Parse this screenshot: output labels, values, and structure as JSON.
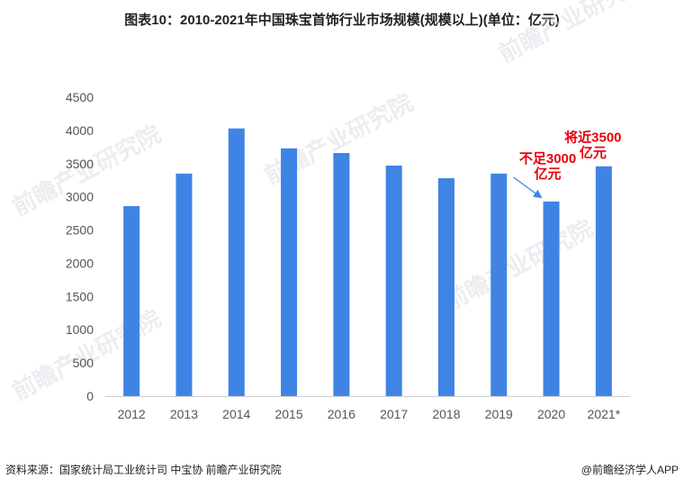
{
  "chart_data": {
    "type": "bar",
    "title": "图表10：2010-2021年中国珠宝首饰行业市场规模(规模以上)(单位：亿元)",
    "categories": [
      "2012",
      "2013",
      "2014",
      "2015",
      "2016",
      "2017",
      "2018",
      "2019",
      "2020",
      "2021*"
    ],
    "values": [
      2860,
      3350,
      4030,
      3730,
      3660,
      3470,
      3280,
      3350,
      2930,
      3460
    ],
    "ylim": [
      0,
      4500
    ],
    "yticks": [
      0,
      500,
      1000,
      1500,
      2000,
      2500,
      3000,
      3500,
      4000,
      4500
    ],
    "grid": false,
    "xlabel": "",
    "ylabel": "",
    "bar_color": "#3f84e5",
    "annotations": [
      {
        "category": "2020",
        "lines": [
          "不足3000",
          "亿元"
        ],
        "color": "#e8000b",
        "arrow": true
      },
      {
        "category": "2021*",
        "lines": [
          "将近3500",
          "亿元"
        ],
        "color": "#e8000b",
        "arrow": false
      }
    ]
  },
  "footer": {
    "source": "资料来源：国家统计局工业统计司 中宝协 前瞻产业研究院",
    "brand": "@前瞻经济学人APP"
  },
  "watermark": {
    "text": "前瞻产业研究院"
  }
}
